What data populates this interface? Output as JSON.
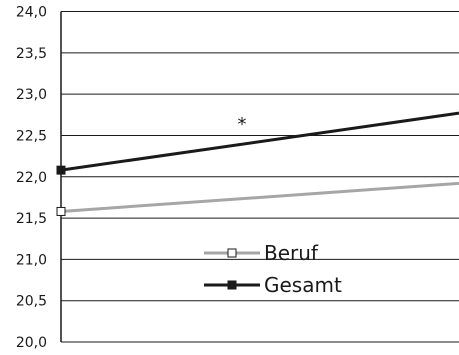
{
  "chart_data": {
    "type": "line",
    "ylim": [
      20.0,
      24.0
    ],
    "yticks": [
      "24,0",
      "23,5",
      "23,0",
      "22,5",
      "22,0",
      "21,5",
      "21,0",
      "20,5",
      "20,0"
    ],
    "grid": true,
    "series": [
      {
        "name": "Beruf",
        "color": "#a6a6a6",
        "marker": "open-square",
        "start": 21.58,
        "end": 21.92
      },
      {
        "name": "Gesamt",
        "color": "#1a1a1a",
        "marker": "filled-square",
        "start": 22.08,
        "end": 22.77
      }
    ],
    "annotations": [
      {
        "text": "*",
        "x": 0.5,
        "y": 22.66
      }
    ],
    "legend_placement": "lower-center"
  }
}
